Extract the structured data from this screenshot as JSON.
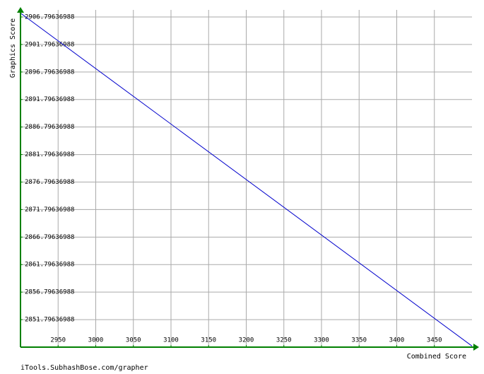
{
  "chart_data": {
    "type": "line",
    "x_label": "Combined Score",
    "y_label": "Graphics Score",
    "footer": "iTools.SubhashBose.com/grapher",
    "x": [
      2900,
      3500
    ],
    "series": [
      {
        "color": "#0000cc",
        "values": [
          2907.5,
          2847.0
        ]
      }
    ],
    "xlim": [
      2900,
      3500
    ],
    "ylim": [
      2846.79636988,
      2908.08
    ],
    "xticks": [
      2950,
      3000,
      3050,
      3100,
      3150,
      3200,
      3250,
      3300,
      3350,
      3400,
      3450
    ],
    "yticks": [
      2851.79636988,
      2856.79636988,
      2861.79636988,
      2866.79636988,
      2871.79636988,
      2876.79636988,
      2881.79636988,
      2886.79636988,
      2891.79636988,
      2896.79636988,
      2901.79636988,
      2906.79636988
    ],
    "grid": true,
    "axis_color": "#008000"
  }
}
